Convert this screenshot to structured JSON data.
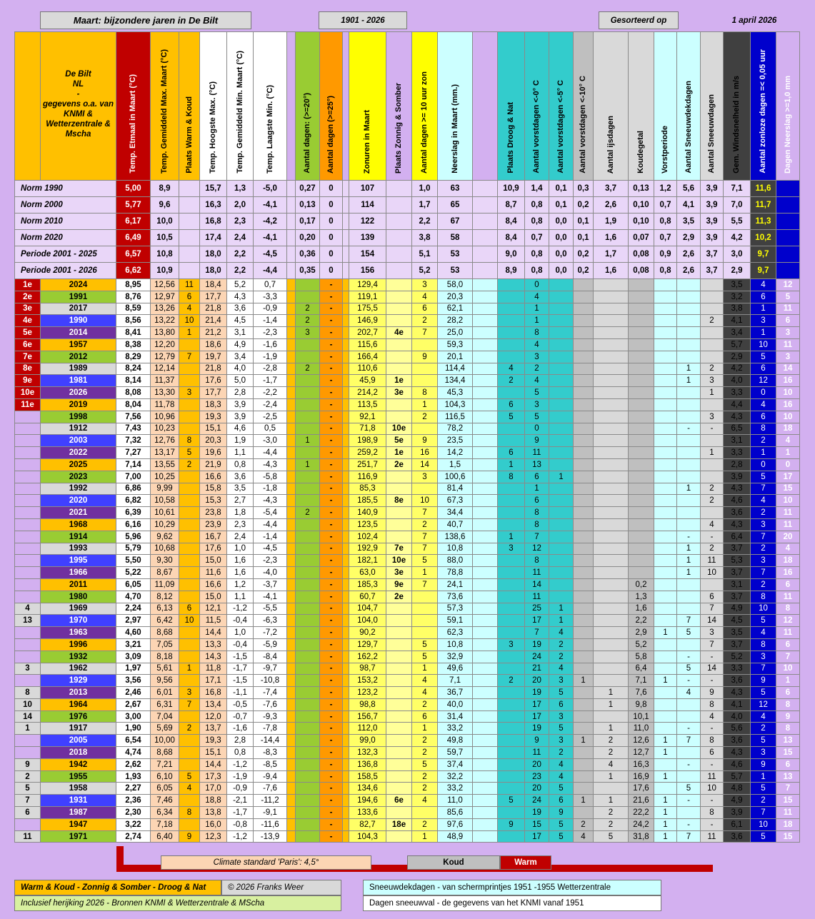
{
  "title": "Maart: bijzondere jaren in De Bilt",
  "period": "1901 - 2026",
  "sorted_label": "Gesorteerd op",
  "date_label": "1 april 2026",
  "source_lines": [
    "De Bilt",
    "NL",
    "-",
    "gegevens o.a. van",
    "KNMI &",
    "Wetterzentrale &",
    "Mscha"
  ],
  "headers": [
    "Temp. Etmaal in Maart (°C)",
    "Temp. Gemiddeld Max. Maart (°C)",
    "Plaats Warm & Koud",
    "Temp. Hoogste Max. (°C)",
    "Temp. Gemiddeld Min. Maart (°C)",
    "Temp. Laagste Min. (°C)",
    "Aantal dagen: (>=20°)",
    "Aantal dagen (>=25°)",
    "Zonuren in Maart",
    "Plaats Zonnig & Somber",
    "Aantal dagen >= 10 uur zon",
    "Neerslag in Maart (mm.)",
    "Plaats Droog & Nat",
    "Aantal vorstdagen <-0° C",
    "Aantal vorstdagen <-5° C",
    "Aantal vorstdagen <-10° C",
    "Aantal ijsdagen",
    "Koudegetal",
    "Vorstperiode",
    "Aantal Sneeuwdekdagen",
    "Aantal Sneeuwdagen",
    "Gem. Windsnelheid in m/s",
    "Aantal zonloze dagen =< 0,05 uur",
    "Dagen Neerslag >=1,0 mm"
  ],
  "norms": [
    [
      "Norm 1990",
      "5,00",
      "8,9",
      "15,7",
      "1,3",
      "-5,0",
      "0,27",
      "0",
      "107",
      "1,0",
      "63",
      "10,9",
      "1,4",
      "0,1",
      "0,3",
      "3,7",
      "0,13",
      "1,2",
      "5,6",
      "3,9",
      "7,1",
      "11,6"
    ],
    [
      "Norm 2000",
      "5,77",
      "9,6",
      "16,3",
      "2,0",
      "-4,1",
      "0,13",
      "0",
      "114",
      "1,7",
      "65",
      "8,7",
      "0,8",
      "0,1",
      "0,2",
      "2,6",
      "0,10",
      "0,7",
      "4,1",
      "3,9",
      "7,0",
      "11,7"
    ],
    [
      "Norm 2010",
      "6,17",
      "10,0",
      "16,8",
      "2,3",
      "-4,2",
      "0,17",
      "0",
      "122",
      "2,2",
      "67",
      "8,4",
      "0,8",
      "0,0",
      "0,1",
      "1,9",
      "0,10",
      "0,8",
      "3,5",
      "3,9",
      "5,5",
      "11,3"
    ],
    [
      "Norm 2020",
      "6,49",
      "10,5",
      "17,4",
      "2,4",
      "-4,1",
      "0,20",
      "0",
      "139",
      "3,8",
      "58",
      "8,4",
      "0,7",
      "0,0",
      "0,1",
      "1,6",
      "0,07",
      "0,7",
      "2,9",
      "3,9",
      "4,2",
      "10,2"
    ],
    [
      "Periode 2001 - 2025",
      "6,57",
      "10,8",
      "18,0",
      "2,2",
      "-4,5",
      "0,36",
      "0",
      "154",
      "5,1",
      "53",
      "9,0",
      "0,8",
      "0,0",
      "0,2",
      "1,7",
      "0,08",
      "0,9",
      "2,6",
      "3,7",
      "3,0",
      "9,7"
    ],
    [
      "Periode 2001 - 2026",
      "6,62",
      "10,9",
      "18,0",
      "2,2",
      "-4,4",
      "0,35",
      "0",
      "156",
      "5,2",
      "53",
      "8,9",
      "0,8",
      "0,0",
      "0,2",
      "1,6",
      "0,08",
      "0,8",
      "2,6",
      "3,7",
      "2,9",
      "9,7"
    ]
  ],
  "rows": [
    [
      "1e",
      "2024",
      "8,95",
      "12,56",
      "11",
      "18,4",
      "5,2",
      "0,7",
      "",
      "-",
      "129,4",
      "",
      "3",
      "58,0",
      "",
      "0",
      "",
      "",
      "",
      "",
      "",
      "",
      "",
      "3,5",
      "4",
      "12"
    ],
    [
      "2e",
      "1991",
      "8,76",
      "12,97",
      "6",
      "17,7",
      "4,3",
      "-3,3",
      "",
      "-",
      "119,1",
      "",
      "4",
      "20,3",
      "",
      "4",
      "",
      "",
      "",
      "",
      "",
      "",
      "",
      "3,2",
      "6",
      "5"
    ],
    [
      "3e",
      "2017",
      "8,59",
      "13,26",
      "4",
      "21,8",
      "3,6",
      "-0,9",
      "2",
      "-",
      "175,5",
      "",
      "6",
      "62,1",
      "",
      "1",
      "",
      "",
      "",
      "",
      "",
      "",
      "",
      "3,8",
      "1",
      "11"
    ],
    [
      "4e",
      "1990",
      "8,56",
      "13,22",
      "10",
      "21,4",
      "4,5",
      "-1,4",
      "2",
      "-",
      "146,9",
      "",
      "2",
      "28,2",
      "",
      "1",
      "",
      "",
      "",
      "",
      "",
      "",
      "2",
      "4,1",
      "3",
      "6"
    ],
    [
      "5e",
      "2014",
      "8,41",
      "13,80",
      "1",
      "21,2",
      "3,1",
      "-2,3",
      "3",
      "-",
      "202,7",
      "4e",
      "7",
      "25,0",
      "",
      "8",
      "",
      "",
      "",
      "",
      "",
      "",
      "",
      "3,4",
      "1",
      "3"
    ],
    [
      "6e",
      "1957",
      "8,38",
      "12,20",
      "",
      "18,6",
      "4,9",
      "-1,6",
      "",
      "-",
      "115,6",
      "",
      "",
      "59,3",
      "",
      "4",
      "",
      "",
      "",
      "",
      "",
      "",
      "",
      "5,7",
      "10",
      "11"
    ],
    [
      "7e",
      "2012",
      "8,29",
      "12,79",
      "7",
      "19,7",
      "3,4",
      "-1,9",
      "",
      "-",
      "166,4",
      "",
      "9",
      "20,1",
      "",
      "3",
      "",
      "",
      "",
      "",
      "",
      "",
      "",
      "2,9",
      "5",
      "3"
    ],
    [
      "8e",
      "1989",
      "8,24",
      "12,14",
      "",
      "21,8",
      "4,0",
      "-2,8",
      "2",
      "-",
      "110,6",
      "",
      "",
      "114,4",
      "4",
      "2",
      "",
      "",
      "",
      "",
      "",
      "1",
      "2",
      "4,2",
      "6",
      "14"
    ],
    [
      "9e",
      "1981",
      "8,14",
      "11,37",
      "",
      "17,6",
      "5,0",
      "-1,7",
      "",
      "-",
      "45,9",
      "1e",
      "",
      "134,4",
      "2",
      "4",
      "",
      "",
      "",
      "",
      "",
      "1",
      "3",
      "4,0",
      "12",
      "16"
    ],
    [
      "10e",
      "2026",
      "8,08",
      "13,30",
      "3",
      "17,7",
      "2,8",
      "-2,2",
      "",
      "-",
      "214,2",
      "3e",
      "8",
      "45,3",
      "",
      "5",
      "",
      "",
      "",
      "",
      "",
      "",
      "1",
      "3,3",
      "0",
      "10"
    ],
    [
      "11e",
      "2019",
      "8,04",
      "11,78",
      "",
      "18,3",
      "3,9",
      "-2,4",
      "",
      "-",
      "113,5",
      "",
      "1",
      "104,3",
      "6",
      "3",
      "",
      "",
      "",
      "",
      "",
      "",
      "",
      "4,4",
      "4",
      "16"
    ],
    [
      "",
      "1998",
      "7,56",
      "10,96",
      "",
      "19,3",
      "3,9",
      "-2,5",
      "",
      "-",
      "92,1",
      "",
      "2",
      "116,5",
      "5",
      "5",
      "",
      "",
      "",
      "",
      "",
      "",
      "3",
      "4,3",
      "6",
      "10"
    ],
    [
      "",
      "1912",
      "7,43",
      "10,23",
      "",
      "15,1",
      "4,6",
      "0,5",
      "",
      "-",
      "71,8",
      "10e",
      "",
      "78,2",
      "",
      "0",
      "",
      "",
      "",
      "",
      "",
      "-",
      "-",
      "6,5",
      "8",
      "18"
    ],
    [
      "",
      "2003",
      "7,32",
      "12,76",
      "8",
      "20,3",
      "1,9",
      "-3,0",
      "1",
      "-",
      "198,9",
      "5e",
      "9",
      "23,5",
      "",
      "9",
      "",
      "",
      "",
      "",
      "",
      "",
      "",
      "3,1",
      "2",
      "4"
    ],
    [
      "",
      "2022",
      "7,27",
      "13,17",
      "5",
      "19,6",
      "1,1",
      "-4,4",
      "",
      "-",
      "259,2",
      "1e",
      "16",
      "14,2",
      "6",
      "11",
      "",
      "",
      "",
      "",
      "",
      "",
      "1",
      "3,3",
      "1",
      "1"
    ],
    [
      "",
      "2025",
      "7,14",
      "13,55",
      "2",
      "21,9",
      "0,8",
      "-4,3",
      "1",
      "-",
      "251,7",
      "2e",
      "14",
      "1,5",
      "1",
      "13",
      "",
      "",
      "",
      "",
      "",
      "",
      "",
      "2,8",
      "0",
      "0"
    ],
    [
      "",
      "2023",
      "7,00",
      "10,25",
      "",
      "16,6",
      "3,6",
      "-5,8",
      "",
      "-",
      "116,9",
      "",
      "3",
      "100,6",
      "8",
      "6",
      "1",
      "",
      "",
      "",
      "",
      "",
      "",
      "3,9",
      "5",
      "17"
    ],
    [
      "",
      "1992",
      "6,86",
      "9,99",
      "",
      "15,8",
      "3,5",
      "-1,8",
      "",
      "-",
      "85,3",
      "",
      "",
      "81,4",
      "",
      "1",
      "",
      "",
      "",
      "",
      "",
      "1",
      "2",
      "4,3",
      "7",
      "15"
    ],
    [
      "",
      "2020",
      "6,82",
      "10,58",
      "",
      "15,3",
      "2,7",
      "-4,3",
      "",
      "-",
      "185,5",
      "8e",
      "10",
      "67,3",
      "",
      "6",
      "",
      "",
      "",
      "",
      "",
      "",
      "2",
      "4,6",
      "4",
      "10"
    ],
    [
      "",
      "2021",
      "6,39",
      "10,61",
      "",
      "23,8",
      "1,8",
      "-5,4",
      "2",
      "-",
      "140,9",
      "",
      "7",
      "34,4",
      "",
      "8",
      "",
      "",
      "",
      "",
      "",
      "",
      "",
      "3,6",
      "2",
      "11"
    ],
    [
      "",
      "1968",
      "6,16",
      "10,29",
      "",
      "23,9",
      "2,3",
      "-4,4",
      "",
      "-",
      "123,5",
      "",
      "2",
      "40,7",
      "",
      "8",
      "",
      "",
      "",
      "",
      "",
      "",
      "4",
      "4,3",
      "3",
      "11"
    ],
    [
      "",
      "1914",
      "5,96",
      "9,62",
      "",
      "16,7",
      "2,4",
      "-1,4",
      "",
      "-",
      "102,4",
      "",
      "7",
      "138,6",
      "1",
      "7",
      "",
      "",
      "",
      "",
      "",
      "-",
      "-",
      "6,4",
      "7",
      "20"
    ],
    [
      "",
      "1993",
      "5,79",
      "10,68",
      "",
      "17,6",
      "1,0",
      "-4,5",
      "",
      "-",
      "192,9",
      "7e",
      "7",
      "10,8",
      "3",
      "12",
      "",
      "",
      "",
      "",
      "",
      "1",
      "2",
      "3,7",
      "2",
      "4"
    ],
    [
      "",
      "1995",
      "5,50",
      "9,30",
      "",
      "15,0",
      "1,6",
      "-2,3",
      "",
      "-",
      "182,1",
      "10e",
      "5",
      "88,0",
      "",
      "8",
      "",
      "",
      "",
      "",
      "",
      "1",
      "11",
      "5,3",
      "3",
      "18"
    ],
    [
      "",
      "1966",
      "5,22",
      "8,67",
      "",
      "11,6",
      "1,6",
      "-4,0",
      "",
      "-",
      "63,0",
      "3e",
      "1",
      "78,8",
      "",
      "11",
      "",
      "",
      "",
      "",
      "",
      "1",
      "10",
      "3,7",
      "7",
      "16"
    ],
    [
      "",
      "2011",
      "6,05",
      "11,09",
      "",
      "16,6",
      "1,2",
      "-3,7",
      "",
      "-",
      "185,3",
      "9e",
      "7",
      "24,1",
      "",
      "14",
      "",
      "",
      "",
      "0,2",
      "",
      "",
      "",
      "3,1",
      "2",
      "6"
    ],
    [
      "",
      "1980",
      "4,70",
      "8,12",
      "",
      "15,0",
      "1,1",
      "-4,1",
      "",
      "-",
      "60,7",
      "2e",
      "",
      "73,6",
      "",
      "11",
      "",
      "",
      "",
      "1,3",
      "",
      "",
      "6",
      "3,7",
      "8",
      "11"
    ],
    [
      "4",
      "1969",
      "2,24",
      "6,13",
      "6",
      "12,1",
      "-1,2",
      "-5,5",
      "",
      "-",
      "104,7",
      "",
      "",
      "57,3",
      "",
      "25",
      "1",
      "",
      "",
      "1,6",
      "",
      "",
      "7",
      "4,9",
      "10",
      "8"
    ],
    [
      "13",
      "1970",
      "2,97",
      "6,42",
      "10",
      "11,5",
      "-0,4",
      "-6,3",
      "",
      "-",
      "104,0",
      "",
      "",
      "59,1",
      "",
      "17",
      "1",
      "",
      "",
      "2,2",
      "",
      "7",
      "14",
      "4,5",
      "5",
      "12"
    ],
    [
      "",
      "1963",
      "4,60",
      "8,68",
      "",
      "14,4",
      "1,0",
      "-7,2",
      "",
      "-",
      "90,2",
      "",
      "",
      "62,3",
      "",
      "7",
      "4",
      "",
      "",
      "2,9",
      "1",
      "5",
      "3",
      "3,5",
      "4",
      "11"
    ],
    [
      "",
      "1996",
      "3,21",
      "7,05",
      "",
      "13,3",
      "-0,4",
      "-5,9",
      "",
      "-",
      "129,7",
      "",
      "5",
      "10,8",
      "3",
      "19",
      "2",
      "",
      "",
      "5,2",
      "",
      "",
      "7",
      "3,7",
      "8",
      "6"
    ],
    [
      "",
      "1932",
      "3,09",
      "8,18",
      "",
      "14,3",
      "-1,5",
      "-8,4",
      "",
      "-",
      "162,2",
      "",
      "5",
      "32,9",
      "",
      "24",
      "2",
      "",
      "",
      "5,8",
      "",
      "-",
      "-",
      "5,2",
      "3",
      "7"
    ],
    [
      "3",
      "1962",
      "1,97",
      "5,61",
      "1",
      "11,8",
      "-1,7",
      "-9,7",
      "",
      "-",
      "98,7",
      "",
      "1",
      "49,6",
      "",
      "21",
      "4",
      "",
      "",
      "6,4",
      "",
      "5",
      "14",
      "3,3",
      "7",
      "10"
    ],
    [
      "",
      "1929",
      "3,56",
      "9,56",
      "",
      "17,1",
      "-1,5",
      "-10,8",
      "",
      "-",
      "153,2",
      "",
      "4",
      "7,1",
      "2",
      "20",
      "3",
      "1",
      "",
      "7,1",
      "1",
      "-",
      "-",
      "3,6",
      "9",
      "1"
    ],
    [
      "8",
      "2013",
      "2,46",
      "6,01",
      "3",
      "16,8",
      "-1,1",
      "-7,4",
      "",
      "-",
      "123,2",
      "",
      "4",
      "36,7",
      "",
      "19",
      "5",
      "",
      "1",
      "7,6",
      "",
      "4",
      "9",
      "4,3",
      "5",
      "6"
    ],
    [
      "10",
      "1964",
      "2,67",
      "6,31",
      "7",
      "13,4",
      "-0,5",
      "-7,6",
      "",
      "-",
      "98,8",
      "",
      "2",
      "40,0",
      "",
      "17",
      "6",
      "",
      "1",
      "9,8",
      "",
      "",
      "8",
      "4,1",
      "12",
      "8"
    ],
    [
      "14",
      "1976",
      "3,00",
      "7,04",
      "",
      "12,0",
      "-0,7",
      "-9,3",
      "",
      "-",
      "156,7",
      "",
      "6",
      "31,4",
      "",
      "17",
      "3",
      "",
      "",
      "10,1",
      "",
      "",
      "4",
      "4,0",
      "4",
      "9"
    ],
    [
      "1",
      "1917",
      "1,90",
      "5,69",
      "2",
      "13,7",
      "-1,6",
      "-7,8",
      "",
      "-",
      "112,0",
      "",
      "1",
      "33,2",
      "",
      "19",
      "5",
      "",
      "1",
      "11,0",
      "",
      "-",
      "-",
      "5,6",
      "2",
      "8"
    ],
    [
      "",
      "2005",
      "6,54",
      "10,00",
      "",
      "19,3",
      "2,8",
      "-14,4",
      "",
      "-",
      "99,0",
      "",
      "2",
      "49,8",
      "",
      "9",
      "3",
      "1",
      "2",
      "12,6",
      "1",
      "7",
      "8",
      "3,6",
      "5",
      "13"
    ],
    [
      "",
      "2018",
      "4,74",
      "8,68",
      "",
      "15,1",
      "0,8",
      "-8,3",
      "",
      "-",
      "132,3",
      "",
      "2",
      "59,7",
      "",
      "11",
      "2",
      "",
      "2",
      "12,7",
      "1",
      "",
      "6",
      "4,3",
      "3",
      "15"
    ],
    [
      "9",
      "1942",
      "2,62",
      "7,21",
      "",
      "14,4",
      "-1,2",
      "-8,5",
      "",
      "-",
      "136,8",
      "",
      "5",
      "37,4",
      "",
      "20",
      "4",
      "",
      "4",
      "16,3",
      "",
      "-",
      "-",
      "4,6",
      "9",
      "6"
    ],
    [
      "2",
      "1955",
      "1,93",
      "6,10",
      "5",
      "17,3",
      "-1,9",
      "-9,4",
      "",
      "-",
      "158,5",
      "",
      "2",
      "32,2",
      "",
      "23",
      "4",
      "",
      "1",
      "16,9",
      "1",
      "",
      "11",
      "5,7",
      "1",
      "13"
    ],
    [
      "5",
      "1958",
      "2,27",
      "6,05",
      "4",
      "17,0",
      "-0,9",
      "-7,6",
      "",
      "-",
      "134,6",
      "",
      "2",
      "33,2",
      "",
      "20",
      "5",
      "",
      "",
      "17,6",
      "",
      "5",
      "10",
      "4,8",
      "5",
      "7"
    ],
    [
      "7",
      "1931",
      "2,36",
      "7,46",
      "",
      "18,8",
      "-2,1",
      "-11,2",
      "",
      "-",
      "194,6",
      "6e",
      "4",
      "11,0",
      "5",
      "24",
      "6",
      "1",
      "1",
      "21,6",
      "1",
      "-",
      "-",
      "4,9",
      "2",
      "15"
    ],
    [
      "6",
      "1987",
      "2,30",
      "6,34",
      "8",
      "13,8",
      "-1,7",
      "-9,1",
      "",
      "-",
      "133,6",
      "",
      "",
      "85,6",
      "",
      "19",
      "9",
      "",
      "2",
      "22,2",
      "1",
      "",
      "8",
      "3,9",
      "7",
      "11"
    ],
    [
      "",
      "1947",
      "3,22",
      "7,18",
      "",
      "16,0",
      "-0,8",
      "-11,6",
      "",
      "-",
      "82,7",
      "18e",
      "2",
      "97,6",
      "9",
      "15",
      "5",
      "2",
      "2",
      "24,2",
      "1",
      "-",
      "-",
      "6,1",
      "10",
      "18"
    ],
    [
      "11",
      "1971",
      "2,74",
      "6,40",
      "9",
      "12,3",
      "-1,2",
      "-13,9",
      "",
      "-",
      "104,3",
      "",
      "1",
      "48,9",
      "",
      "17",
      "5",
      "4",
      "5",
      "31,8",
      "1",
      "7",
      "11",
      "3,6",
      "5",
      "15"
    ]
  ],
  "legend": {
    "paris": "Climate standard 'Paris': 4,5°",
    "koud": "Koud",
    "warm": "Warm"
  },
  "footer": {
    "left1": "Warm & Koud - Zonnig & Somber - Droog & Nat",
    "copyright": "© 2026 Franks Weer",
    "left2": "Inclusief herijking 2026 - Bronnen KNMI  &  Wetterzentrale  &  MScha",
    "right1": "Sneeuwdekdagen - van schermprintjes 1951 -1955 Wetterzentrale",
    "right2": "Dagen sneeuwval - de gegevens van het KNMI vanaf 1951"
  },
  "colors": {
    "bg": "#d3b0f0",
    "warm": "#c00000",
    "zon": "#ffff66",
    "blauw": "#0000cc",
    "cyaan": "#33cccc",
    "oranje": "#ff9900",
    "groen": "#99cc33"
  }
}
